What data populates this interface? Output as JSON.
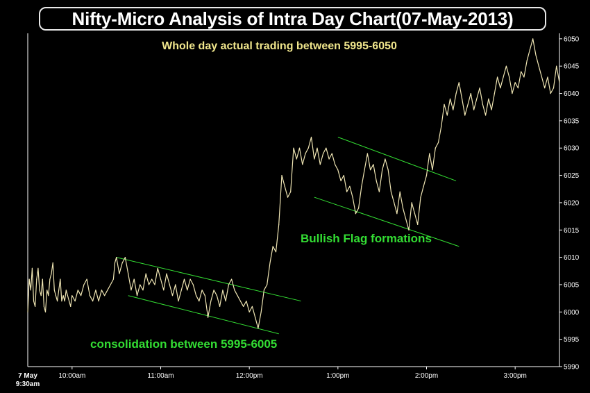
{
  "title": "Nifty-Micro Analysis of Intra Day Chart(07-May-2013)",
  "subtitle": "Whole day actual trading between 5995-6050",
  "annotations": {
    "consolidation": "consolidation between 5995-6005",
    "flag": "Bullish Flag formations"
  },
  "colors": {
    "background": "#000000",
    "price_line": "#f0e6b4",
    "trend_lines": "#33dd33",
    "annotation_text": "#33dd33",
    "subtitle_text": "#f0e68c",
    "axis": "#ffffff"
  },
  "chart_data": {
    "type": "line",
    "title": "Nifty-Micro Analysis of Intra Day Chart(07-May-2013)",
    "xlabel": "",
    "ylabel": "",
    "ylim": [
      5990,
      6051
    ],
    "yticks": [
      5990,
      5995,
      6000,
      6005,
      6010,
      6015,
      6020,
      6025,
      6030,
      6035,
      6040,
      6045,
      6050
    ],
    "x_start_label": [
      "7 May",
      "9:30am"
    ],
    "xticks": [
      {
        "t": "10:00",
        "label": "10:00am"
      },
      {
        "t": "11:00",
        "label": "11:00am"
      },
      {
        "t": "12:00",
        "label": "12:00pm"
      },
      {
        "t": "13:00",
        "label": "1:00pm"
      },
      {
        "t": "14:00",
        "label": "2:00pm"
      },
      {
        "t": "15:00",
        "label": "3:00pm"
      }
    ],
    "xrange": [
      "09:30",
      "15:30"
    ],
    "grid": false,
    "series": [
      {
        "points": [
          [
            "09:30",
            6000
          ],
          [
            "09:31",
            6006
          ],
          [
            "09:32",
            6004
          ],
          [
            "09:33",
            6008
          ],
          [
            "09:34",
            6002
          ],
          [
            "09:35",
            6001
          ],
          [
            "09:36",
            6006
          ],
          [
            "09:37",
            6008
          ],
          [
            "09:38",
            6004
          ],
          [
            "09:39",
            6003
          ],
          [
            "09:40",
            6006
          ],
          [
            "09:41",
            6001
          ],
          [
            "09:42",
            6000
          ],
          [
            "09:43",
            6004
          ],
          [
            "09:44",
            6003
          ],
          [
            "09:45",
            6006
          ],
          [
            "09:46",
            6007
          ],
          [
            "09:47",
            6009
          ],
          [
            "09:48",
            6004
          ],
          [
            "09:49",
            6003
          ],
          [
            "09:50",
            6002
          ],
          [
            "09:51",
            6004
          ],
          [
            "09:52",
            6006
          ],
          [
            "09:53",
            6002
          ],
          [
            "09:54",
            6003
          ],
          [
            "09:55",
            6002
          ],
          [
            "09:56",
            6004
          ],
          [
            "09:57",
            6003
          ],
          [
            "09:58",
            6002
          ],
          [
            "09:59",
            6001
          ],
          [
            "10:00",
            6003
          ],
          [
            "10:02",
            6002
          ],
          [
            "10:04",
            6004
          ],
          [
            "10:06",
            6003
          ],
          [
            "10:08",
            6005
          ],
          [
            "10:10",
            6006
          ],
          [
            "10:12",
            6003
          ],
          [
            "10:14",
            6002
          ],
          [
            "10:16",
            6004
          ],
          [
            "10:18",
            6002
          ],
          [
            "10:20",
            6004
          ],
          [
            "10:22",
            6003
          ],
          [
            "10:24",
            6004
          ],
          [
            "10:26",
            6005
          ],
          [
            "10:28",
            6006
          ],
          [
            "10:29",
            6009
          ],
          [
            "10:30",
            6010
          ],
          [
            "10:32",
            6007
          ],
          [
            "10:34",
            6009
          ],
          [
            "10:36",
            6010
          ],
          [
            "10:38",
            6007
          ],
          [
            "10:40",
            6004
          ],
          [
            "10:42",
            6006
          ],
          [
            "10:44",
            6003
          ],
          [
            "10:46",
            6005
          ],
          [
            "10:48",
            6004
          ],
          [
            "10:50",
            6007
          ],
          [
            "10:52",
            6005
          ],
          [
            "10:54",
            6006
          ],
          [
            "10:56",
            6005
          ],
          [
            "10:58",
            6008
          ],
          [
            "11:00",
            6006
          ],
          [
            "11:02",
            6004
          ],
          [
            "11:04",
            6007
          ],
          [
            "11:06",
            6005
          ],
          [
            "11:08",
            6003
          ],
          [
            "11:10",
            6005
          ],
          [
            "11:12",
            6002
          ],
          [
            "11:14",
            6004
          ],
          [
            "11:16",
            6006
          ],
          [
            "11:18",
            6004
          ],
          [
            "11:20",
            6006
          ],
          [
            "11:22",
            6005
          ],
          [
            "11:24",
            6003
          ],
          [
            "11:26",
            6002
          ],
          [
            "11:28",
            6004
          ],
          [
            "11:30",
            6003
          ],
          [
            "11:32",
            5999
          ],
          [
            "11:34",
            6002
          ],
          [
            "11:36",
            6004
          ],
          [
            "11:38",
            6003
          ],
          [
            "11:40",
            6001
          ],
          [
            "11:42",
            6004
          ],
          [
            "11:44",
            6002
          ],
          [
            "11:46",
            6005
          ],
          [
            "11:48",
            6006
          ],
          [
            "11:50",
            6004
          ],
          [
            "11:52",
            6003
          ],
          [
            "11:54",
            6002
          ],
          [
            "11:56",
            6001
          ],
          [
            "11:58",
            6002
          ],
          [
            "12:00",
            6000
          ],
          [
            "12:02",
            6001
          ],
          [
            "12:04",
            5999
          ],
          [
            "12:06",
            5997
          ],
          [
            "12:08",
            6000
          ],
          [
            "12:10",
            6004
          ],
          [
            "12:12",
            6005
          ],
          [
            "12:14",
            6009
          ],
          [
            "12:16",
            6012
          ],
          [
            "12:18",
            6011
          ],
          [
            "12:20",
            6016
          ],
          [
            "12:22",
            6025
          ],
          [
            "12:24",
            6023
          ],
          [
            "12:26",
            6021
          ],
          [
            "12:28",
            6022
          ],
          [
            "12:30",
            6030
          ],
          [
            "12:32",
            6028
          ],
          [
            "12:34",
            6030
          ],
          [
            "12:36",
            6027
          ],
          [
            "12:38",
            6029
          ],
          [
            "12:40",
            6030
          ],
          [
            "12:42",
            6032
          ],
          [
            "12:44",
            6028
          ],
          [
            "12:46",
            6030
          ],
          [
            "12:48",
            6027
          ],
          [
            "12:50",
            6029
          ],
          [
            "12:52",
            6030
          ],
          [
            "12:54",
            6028
          ],
          [
            "12:56",
            6029
          ],
          [
            "12:58",
            6027
          ],
          [
            "13:00",
            6026
          ],
          [
            "13:02",
            6024
          ],
          [
            "13:04",
            6025
          ],
          [
            "13:06",
            6022
          ],
          [
            "13:08",
            6023
          ],
          [
            "13:10",
            6021
          ],
          [
            "13:12",
            6018
          ],
          [
            "13:14",
            6019
          ],
          [
            "13:16",
            6023
          ],
          [
            "13:18",
            6026
          ],
          [
            "13:20",
            6029
          ],
          [
            "13:22",
            6026
          ],
          [
            "13:24",
            6027
          ],
          [
            "13:26",
            6024
          ],
          [
            "13:28",
            6022
          ],
          [
            "13:30",
            6026
          ],
          [
            "13:32",
            6028
          ],
          [
            "13:34",
            6026
          ],
          [
            "13:36",
            6022
          ],
          [
            "13:38",
            6020
          ],
          [
            "13:40",
            6018
          ],
          [
            "13:42",
            6022
          ],
          [
            "13:44",
            6019
          ],
          [
            "13:46",
            6017
          ],
          [
            "13:48",
            6015
          ],
          [
            "13:50",
            6020
          ],
          [
            "13:52",
            6018
          ],
          [
            "13:54",
            6016
          ],
          [
            "13:56",
            6021
          ],
          [
            "13:58",
            6023
          ],
          [
            "14:00",
            6025
          ],
          [
            "14:02",
            6029
          ],
          [
            "14:04",
            6026
          ],
          [
            "14:06",
            6030
          ],
          [
            "14:08",
            6031
          ],
          [
            "14:10",
            6034
          ],
          [
            "14:12",
            6038
          ],
          [
            "14:14",
            6036
          ],
          [
            "14:16",
            6039
          ],
          [
            "14:18",
            6037
          ],
          [
            "14:20",
            6040
          ],
          [
            "14:22",
            6042
          ],
          [
            "14:24",
            6039
          ],
          [
            "14:26",
            6036
          ],
          [
            "14:28",
            6038
          ],
          [
            "14:30",
            6040
          ],
          [
            "14:32",
            6037
          ],
          [
            "14:34",
            6039
          ],
          [
            "14:36",
            6041
          ],
          [
            "14:38",
            6038
          ],
          [
            "14:40",
            6036
          ],
          [
            "14:42",
            6039
          ],
          [
            "14:44",
            6037
          ],
          [
            "14:46",
            6040
          ],
          [
            "14:48",
            6043
          ],
          [
            "14:50",
            6041
          ],
          [
            "14:52",
            6043
          ],
          [
            "14:54",
            6045
          ],
          [
            "14:56",
            6043
          ],
          [
            "14:58",
            6040
          ],
          [
            "15:00",
            6042
          ],
          [
            "15:02",
            6041
          ],
          [
            "15:04",
            6044
          ],
          [
            "15:06",
            6043
          ],
          [
            "15:08",
            6046
          ],
          [
            "15:10",
            6048
          ],
          [
            "15:12",
            6050
          ],
          [
            "15:14",
            6047
          ],
          [
            "15:16",
            6045
          ],
          [
            "15:18",
            6043
          ],
          [
            "15:20",
            6041
          ],
          [
            "15:22",
            6043
          ],
          [
            "15:24",
            6040
          ],
          [
            "15:26",
            6041
          ],
          [
            "15:28",
            6045
          ],
          [
            "15:30",
            6042
          ]
        ]
      }
    ],
    "trend_lines": [
      {
        "from": [
          "10:30",
          6010
        ],
        "to": [
          "12:35",
          6002
        ]
      },
      {
        "from": [
          "10:38",
          6003
        ],
        "to": [
          "12:20",
          5996
        ]
      },
      {
        "from": [
          "13:00",
          6032
        ],
        "to": [
          "14:20",
          6024
        ]
      },
      {
        "from": [
          "12:44",
          6021
        ],
        "to": [
          "14:22",
          6012
        ]
      }
    ]
  }
}
